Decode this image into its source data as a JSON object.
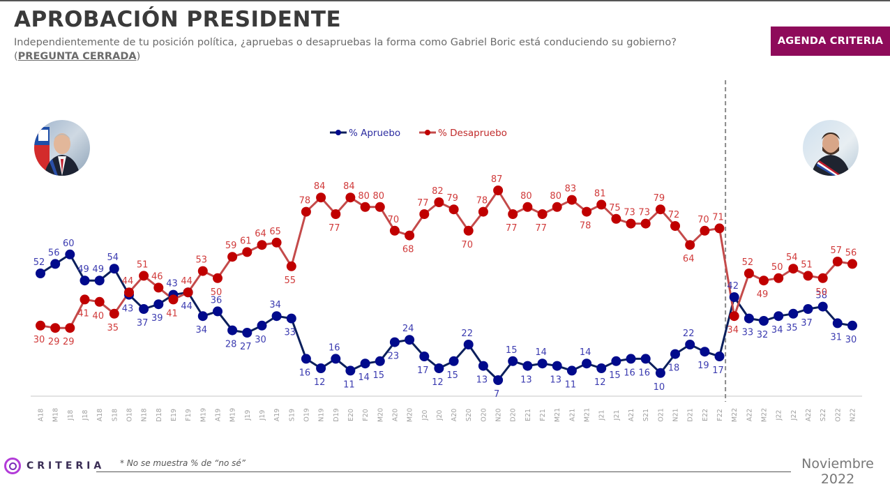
{
  "header": {
    "title": "APROBACIÓN PRESIDENTE",
    "subtitle_main": "Independientemente de tu posición política, ¿apruebas o desapruebas la forma como Gabriel Boric está conduciendo su gobierno? (",
    "subtitle_emphasis": "PREGUNTA CERRADA",
    "subtitle_end": ")",
    "badge": "AGENDA CRITERIA"
  },
  "avatars": {
    "left": "Former president portrait",
    "right": "Current president portrait"
  },
  "footer": {
    "brand": "CRITERIA",
    "note": "* No se muestra % de “no sé”",
    "date_line1": "Noviembre",
    "date_line2": "2022"
  },
  "colors": {
    "apruebo": "#000a8c",
    "apruebo_line": "#0b1f5c",
    "apruebo_label": "#3b3bb0",
    "desapruebo": "#c00000",
    "desapruebo_line": "#c44a4a",
    "desapruebo_label": "#d03a3a",
    "badge": "#8e0b5a"
  },
  "chart_data": {
    "type": "line",
    "title": "",
    "xlabel": "",
    "ylabel": "",
    "ylim": [
      0,
      100
    ],
    "grid": false,
    "legend_position": "top-center",
    "divider_after_category_index": 46,
    "categories": [
      "A18",
      "M18",
      "J18",
      "J18",
      "A18",
      "S18",
      "O18",
      "N18",
      "D18",
      "E19",
      "F19",
      "M19",
      "A19",
      "M19",
      "J19",
      "J19",
      "A19",
      "S19",
      "O19",
      "N19",
      "D19",
      "E20",
      "F20",
      "M20",
      "A20",
      "M20",
      "J20",
      "J20",
      "A20",
      "S20",
      "O20",
      "N20",
      "D20",
      "E21",
      "F21",
      "M21",
      "A21",
      "M21",
      "J21",
      "J21",
      "A21",
      "S21",
      "O21",
      "N21",
      "D21",
      "E22",
      "F22",
      "M22",
      "A22",
      "M22",
      "J22",
      "J22",
      "A22",
      "S22",
      "O22",
      "N22"
    ],
    "series": [
      {
        "name": "% Apruebo",
        "values": [
          52,
          56,
          60,
          49,
          49,
          54,
          43,
          37,
          39,
          43,
          44,
          34,
          36,
          28,
          27,
          30,
          34,
          33,
          16,
          12,
          16,
          11,
          14,
          15,
          23,
          24,
          17,
          12,
          15,
          22,
          13,
          7,
          15,
          13,
          14,
          13,
          11,
          14,
          12,
          15,
          16,
          16,
          10,
          18,
          22,
          19,
          17,
          42,
          33,
          32,
          34,
          35,
          37,
          38,
          31,
          30
        ]
      },
      {
        "name": "% Desapruebo",
        "values": [
          30,
          29,
          29,
          41,
          40,
          35,
          44,
          51,
          46,
          41,
          44,
          53,
          50,
          59,
          61,
          64,
          65,
          55,
          78,
          84,
          77,
          84,
          80,
          80,
          70,
          68,
          77,
          82,
          79,
          70,
          78,
          87,
          77,
          80,
          77,
          80,
          83,
          78,
          81,
          75,
          73,
          73,
          79,
          72,
          64,
          70,
          71,
          34,
          52,
          49,
          50,
          54,
          51,
          50,
          57,
          56
        ]
      }
    ]
  }
}
